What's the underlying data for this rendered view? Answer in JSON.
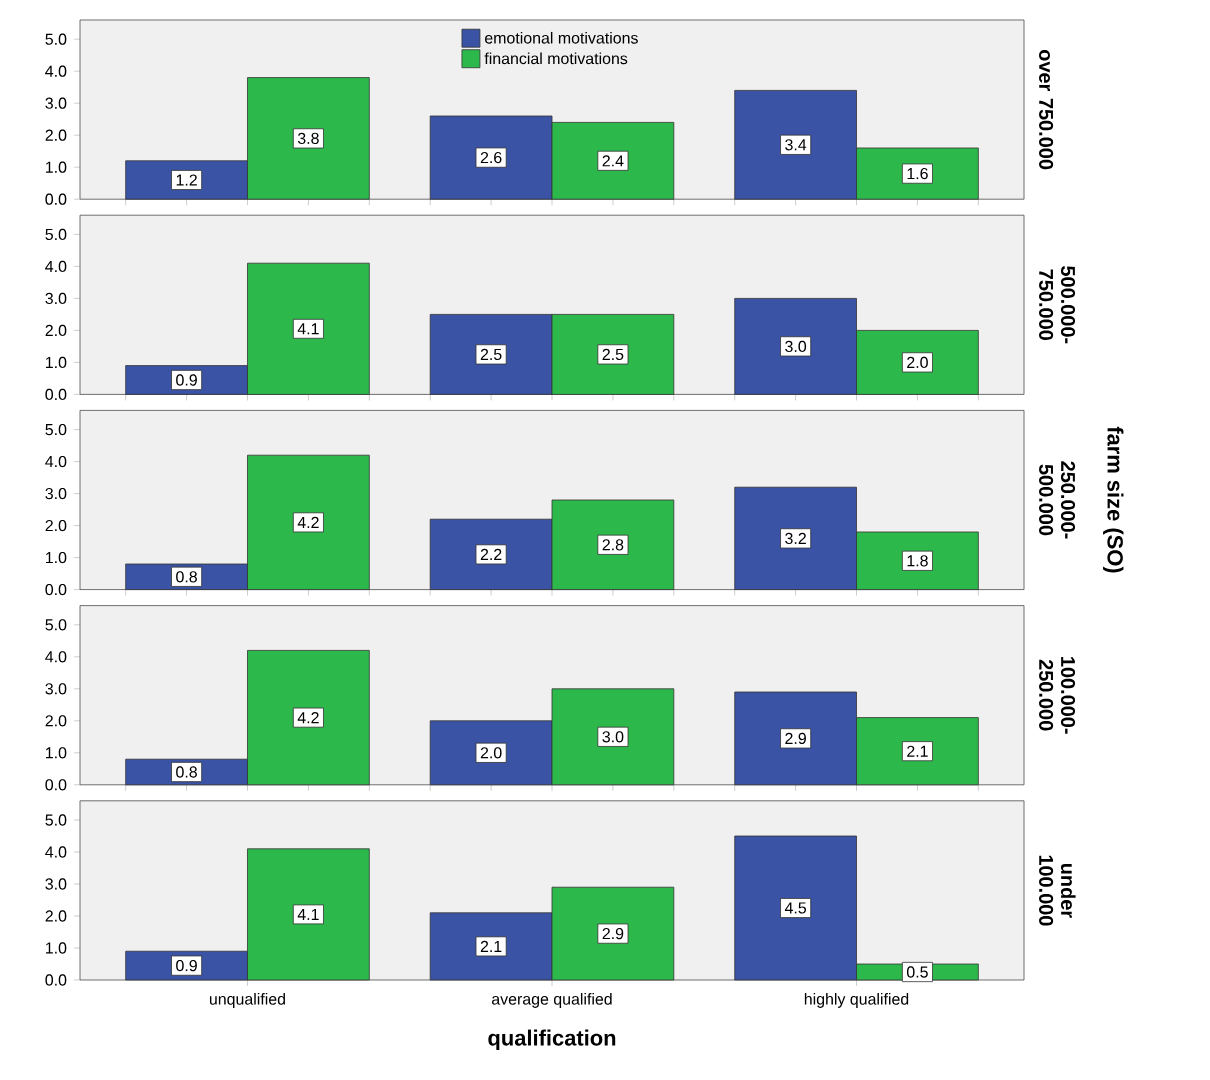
{
  "chart_data": [
    {
      "type": "bar",
      "y2label": "over 750.000",
      "categories": [
        null,
        null,
        null
      ],
      "series": [
        {
          "name": "emotional motivations",
          "color": "#3a53a4",
          "values": [
            1.2,
            2.6,
            3.4
          ],
          "value_labels": [
            "1.2",
            "2.6",
            "3.4"
          ]
        },
        {
          "name": "financial motivations",
          "color": "#2db84b",
          "values": [
            3.8,
            2.4,
            1.6
          ],
          "value_labels": [
            "3.8",
            "2.4",
            "1.6"
          ]
        }
      ],
      "ylim": [
        0,
        5.6
      ],
      "yticks": [
        {
          "value": 0,
          "label": "0.0"
        },
        {
          "value": 1,
          "label": "1.0"
        },
        {
          "value": 2,
          "label": "2.0"
        },
        {
          "value": 3,
          "label": "3.0"
        },
        {
          "value": 4,
          "label": "4.0"
        },
        {
          "value": 5,
          "label": "5.0"
        }
      ],
      "legend": "top",
      "tick_labels": "y"
    },
    {
      "type": "bar",
      "y2label": "500.000-750.000",
      "categories": [
        null,
        null,
        null
      ],
      "series": [
        {
          "color": "#3a53a4",
          "values": [
            0.9,
            2.5,
            3.0
          ],
          "value_labels": [
            "0.9",
            "2.5",
            "3.0"
          ]
        },
        {
          "color": "#2db84b",
          "values": [
            4.1,
            2.5,
            2.0
          ],
          "value_labels": [
            "4.1",
            "2.5",
            "2.0"
          ]
        }
      ],
      "ylim": [
        0,
        5.6
      ],
      "yticks": [
        {
          "value": 0,
          "label": "0.0"
        },
        {
          "value": 1,
          "label": "1.0"
        },
        {
          "value": 2,
          "label": "2.0"
        },
        {
          "value": 3,
          "label": "3.0"
        },
        {
          "value": 4,
          "label": "4.0"
        },
        {
          "value": 5,
          "label": "5.0"
        }
      ],
      "tick_labels": "y"
    },
    {
      "type": "bar",
      "y2label": "250.000-500.000",
      "annotations": [
        "farm size (SO)"
      ],
      "categories": [
        null,
        null,
        null
      ],
      "series": [
        {
          "color": "#3a53a4",
          "values": [
            0.8,
            2.2,
            3.2
          ],
          "value_labels": [
            "0.8",
            "2.2",
            "3.2"
          ]
        },
        {
          "color": "#2db84b",
          "values": [
            4.2,
            2.8,
            1.8
          ],
          "value_labels": [
            "4.2",
            "2.8",
            "1.8"
          ]
        }
      ],
      "ylim": [
        0,
        5.6
      ],
      "yticks": [
        {
          "value": 0,
          "label": "0.0"
        },
        {
          "value": 1,
          "label": "1.0"
        },
        {
          "value": 2,
          "label": "2.0"
        },
        {
          "value": 3,
          "label": "3.0"
        },
        {
          "value": 4,
          "label": "4.0"
        },
        {
          "value": 5,
          "label": "5.0"
        }
      ],
      "tick_labels": "y"
    },
    {
      "type": "bar",
      "y2label": "100.000-250.000",
      "categories": [
        null,
        null,
        null
      ],
      "series": [
        {
          "color": "#3a53a4",
          "values": [
            0.8,
            2.0,
            2.9
          ],
          "value_labels": [
            "0.8",
            "2.0",
            "2.9"
          ]
        },
        {
          "color": "#2db84b",
          "values": [
            4.2,
            3.0,
            2.1
          ],
          "value_labels": [
            "4.2",
            "3.0",
            "2.1"
          ]
        }
      ],
      "ylim": [
        0,
        5.6
      ],
      "yticks": [
        {
          "value": 0,
          "label": "0.0"
        },
        {
          "value": 1,
          "label": "1.0"
        },
        {
          "value": 2,
          "label": "2.0"
        },
        {
          "value": 3,
          "label": "3.0"
        },
        {
          "value": 4,
          "label": "4.0"
        },
        {
          "value": 5,
          "label": "5.0"
        }
      ],
      "tick_labels": "y"
    },
    {
      "type": "bar",
      "y2label": "under 100.000",
      "xlabel": "qualification",
      "categories": [
        "unqualified",
        "average qualified",
        "highly qualified"
      ],
      "series": [
        {
          "color": "#3a53a4",
          "values": [
            0.9,
            2.1,
            4.5
          ],
          "value_labels": [
            "0.9",
            "2.1",
            "4.5"
          ]
        },
        {
          "color": "#2db84b",
          "values": [
            4.1,
            2.9,
            0.5
          ],
          "value_labels": [
            "4.1",
            "2.9",
            "0.5"
          ]
        }
      ],
      "ylim": [
        0,
        5.6
      ],
      "yticks": [
        {
          "value": 0,
          "label": "0.0"
        },
        {
          "value": 1,
          "label": "1.0"
        },
        {
          "value": 2,
          "label": "2.0"
        },
        {
          "value": 3,
          "label": "3.0"
        },
        {
          "value": 4,
          "label": "4.0"
        },
        {
          "value": 5,
          "label": "5.0"
        }
      ]
    }
  ]
}
